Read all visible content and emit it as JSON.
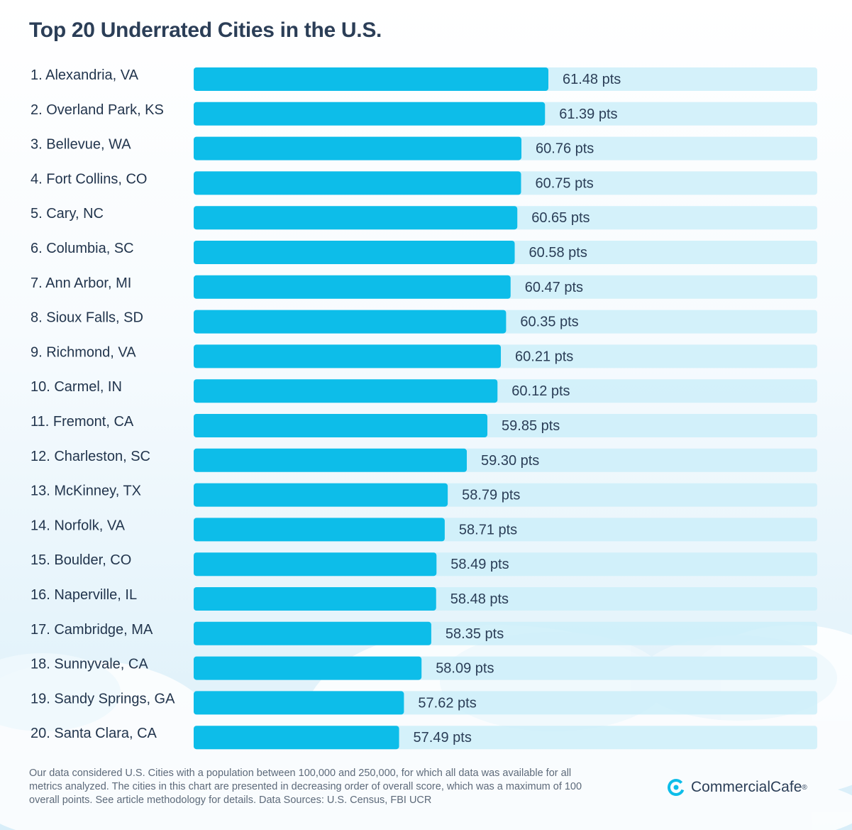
{
  "title": "Top 20 Underrated Cities in the U.S.",
  "chart_data": {
    "type": "bar",
    "orientation": "horizontal",
    "title": "Top 20 Underrated Cities in the U.S.",
    "xlim": [
      0,
      100
    ],
    "value_suffix": " pts",
    "grid": false,
    "categories": [
      "1. Alexandria, VA",
      "2. Overland Park, KS",
      "3. Bellevue, WA",
      "4. Fort Collins, CO",
      "5. Cary, NC",
      "6. Columbia, SC",
      "7. Ann Arbor, MI",
      "8. Sioux Falls, SD",
      "9. Richmond, VA",
      "10. Carmel, IN",
      "11. Fremont, CA",
      "12. Charleston, SC",
      "13. McKinney, TX",
      "14. Norfolk, VA",
      "15. Boulder, CO",
      "16. Naperville, IL",
      "17. Cambridge, MA",
      "18. Sunnyvale, CA",
      "19. Sandy Springs, GA",
      "20. Santa Clara, CA"
    ],
    "values": [
      61.48,
      61.39,
      60.76,
      60.75,
      60.65,
      60.58,
      60.47,
      60.35,
      60.21,
      60.12,
      59.85,
      59.3,
      58.79,
      58.71,
      58.49,
      58.48,
      58.35,
      58.09,
      57.62,
      57.49
    ],
    "value_labels": [
      "61.48 pts",
      "61.39 pts",
      "60.76 pts",
      "60.75 pts",
      "60.65 pts",
      "60.58 pts",
      "60.47 pts",
      "60.35 pts",
      "60.21 pts",
      "60.12 pts",
      "59.85 pts",
      "59.30 pts",
      "58.79 pts",
      "58.71 pts",
      "58.49 pts",
      "58.48 pts",
      "58.35 pts",
      "58.09 pts",
      "57.62 pts",
      "57.49 pts"
    ],
    "colors": {
      "bar": "#0dbde9",
      "track": "#cdeef9"
    }
  },
  "footnote": "Our data considered U.S. Cities with a population between 100,000 and 250,000, for which all data was available for all metrics analyzed. The cities in this chart are presented in decreasing order of overall score, which was a maximum of 100 overall points. See article methodology for details. Data Sources: U.S. Census, FBI UCR",
  "brand": {
    "name": "CommercialCafe",
    "mark": "®",
    "icon": "commercialcafe-logo-icon",
    "color": "#0dbde9"
  }
}
